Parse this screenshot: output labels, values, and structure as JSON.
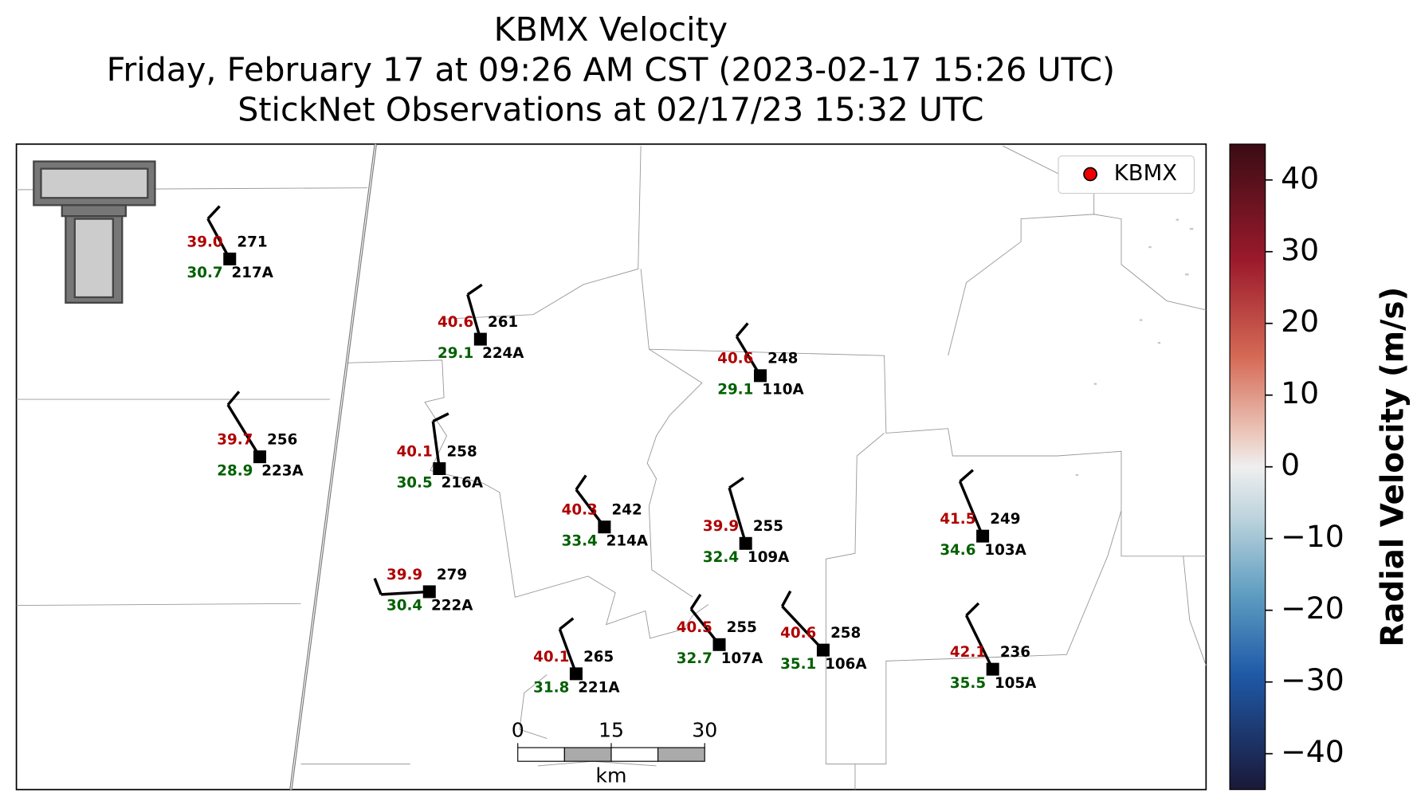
{
  "title": [
    "KBMX Velocity",
    "Friday, February 17 at 09:26 AM CST (2023-02-17 15:26 UTC)",
    "StickNet Observations at 02/17/23 15:32 UTC"
  ],
  "legend": [
    "KBMX"
  ],
  "stations": [
    {
      "id": "217A",
      "temperature": "39.0",
      "direction": "271",
      "dewpoint": "30.7"
    },
    {
      "id": "224A",
      "temperature": "40.6",
      "direction": "261",
      "dewpoint": "29.1"
    },
    {
      "id": "110A",
      "temperature": "40.6",
      "direction": "248",
      "dewpoint": "29.1"
    },
    {
      "id": "223A",
      "temperature": "39.7",
      "direction": "256",
      "dewpoint": "28.9"
    },
    {
      "id": "216A",
      "temperature": "40.1",
      "direction": "258",
      "dewpoint": "30.5"
    },
    {
      "id": "214A",
      "temperature": "40.3",
      "direction": "242",
      "dewpoint": "33.4"
    },
    {
      "id": "109A",
      "temperature": "39.9",
      "direction": "255",
      "dewpoint": "32.4"
    },
    {
      "id": "103A",
      "temperature": "41.5",
      "direction": "249",
      "dewpoint": "34.6"
    },
    {
      "id": "222A",
      "temperature": "39.9",
      "direction": "279",
      "dewpoint": "30.4"
    },
    {
      "id": "221A",
      "temperature": "40.1",
      "direction": "265",
      "dewpoint": "31.8"
    },
    {
      "id": "107A",
      "temperature": "40.5",
      "direction": "255",
      "dewpoint": "32.7"
    },
    {
      "id": "106A",
      "temperature": "40.6",
      "direction": "258",
      "dewpoint": "35.1"
    },
    {
      "id": "105A",
      "temperature": "42.1",
      "direction": "236",
      "dewpoint": "35.5"
    }
  ],
  "scale_bar": {
    "ticks": [
      0,
      15,
      30
    ],
    "unit": "km"
  },
  "colorbar": {
    "label": "Radial Velocity (m/s)",
    "lim": [
      -45,
      45
    ],
    "ticks": [
      40,
      30,
      20,
      10,
      0,
      {
        "value": -10,
        "label": "−10"
      },
      {
        "value": -20,
        "label": "−20"
      },
      {
        "value": -30,
        "label": "−30"
      },
      {
        "value": -40,
        "label": "−40"
      }
    ]
  }
}
